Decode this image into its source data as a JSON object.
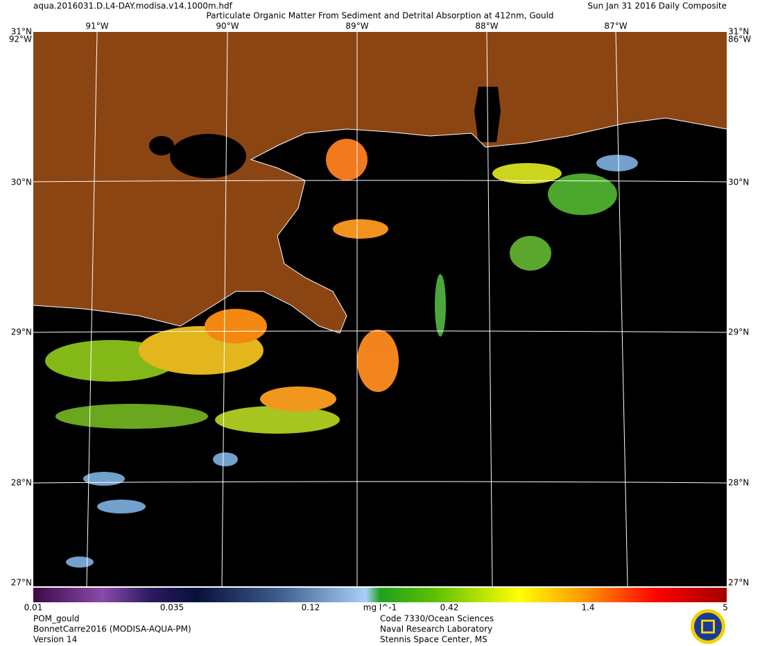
{
  "header": {
    "file": "aqua.2016031.D.L4-DAY.modisa.v14.1000m.hdf",
    "date": "Sun Jan 31 2016 Daily Composite",
    "title": "Particulate Organic Matter From Sediment and Detrital Absorption at 412nm, Gould"
  },
  "map": {
    "lon_labels": [
      "91°W",
      "90°W",
      "89°W",
      "88°W",
      "87°W"
    ],
    "lat_labels": [
      "30°N",
      "29°N",
      "28°N"
    ],
    "corners": {
      "top": "31°N",
      "west": "92°W",
      "east": "86°W",
      "bottom": "27°N"
    }
  },
  "colorbar": {
    "ticks": [
      "0.01",
      "0.035",
      "0.12",
      "0.42",
      "1.4",
      "5"
    ],
    "units": "mg l^-1"
  },
  "footer": {
    "left": [
      "POM_gould",
      "BonnetCarre2016 (MODISA-AQUA-PM)",
      "Version 14"
    ],
    "center": [
      "Code 7330/Ocean Sciences",
      "Naval Research Laboratory",
      "Stennis Space Center, MS"
    ]
  }
}
